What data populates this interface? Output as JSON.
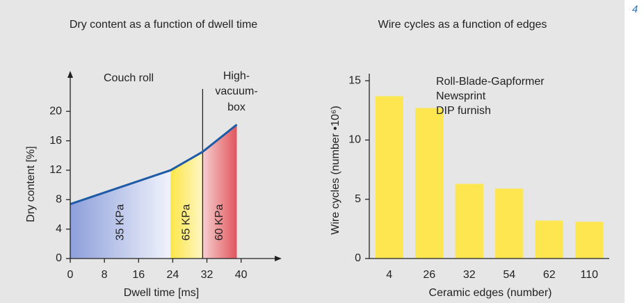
{
  "page_label": "4",
  "chart_data": [
    {
      "type": "line",
      "title": "Dry content as a function of dwell time",
      "x_label": "Dwell time [ms]",
      "y_label": "Dry content [%]",
      "x": [
        0,
        23.5,
        31,
        39
      ],
      "values": [
        7.4,
        12,
        14.5,
        18.2
      ],
      "color": "#1d5ba6",
      "xlim": [
        0,
        49.5
      ],
      "ylim": [
        0,
        25.5
      ],
      "xticks": [
        0,
        8,
        16,
        24,
        32,
        40
      ],
      "yticks": [
        0,
        4,
        8,
        12,
        16,
        20
      ],
      "regions": [
        {
          "label": "35 KPa",
          "start": 0,
          "end": 23.5,
          "colors": [
            "#8d9fdb",
            "#f1f3fb"
          ]
        },
        {
          "label": "65 KPa",
          "start": 23.5,
          "end": 31,
          "colors": [
            "#fde648",
            "#fdf6c4"
          ]
        },
        {
          "label": "60 KPa",
          "start": 31,
          "end": 39,
          "colors": [
            "#f6cfd0",
            "#e0565c"
          ]
        }
      ],
      "divider": 31,
      "annotations": [
        "Couch roll",
        "High-",
        "vacuum-",
        "box"
      ]
    },
    {
      "type": "bar",
      "title": "Wire cycles as a function of edges",
      "x_label": "Ceramic edges (number)",
      "y_label": "Wire cycles (number •10⁶)",
      "categories": [
        "4",
        "26",
        "32",
        "54",
        "62",
        "110"
      ],
      "values": [
        13.7,
        12.7,
        6.3,
        5.9,
        3.2,
        3.1
      ],
      "color": "#fde64f",
      "ylim": [
        0,
        15.6
      ],
      "yticks": [
        0,
        5,
        10,
        15
      ],
      "annotations": [
        "Roll-Blade-Gapformer",
        "Newsprint",
        "DIP furnish"
      ]
    }
  ]
}
